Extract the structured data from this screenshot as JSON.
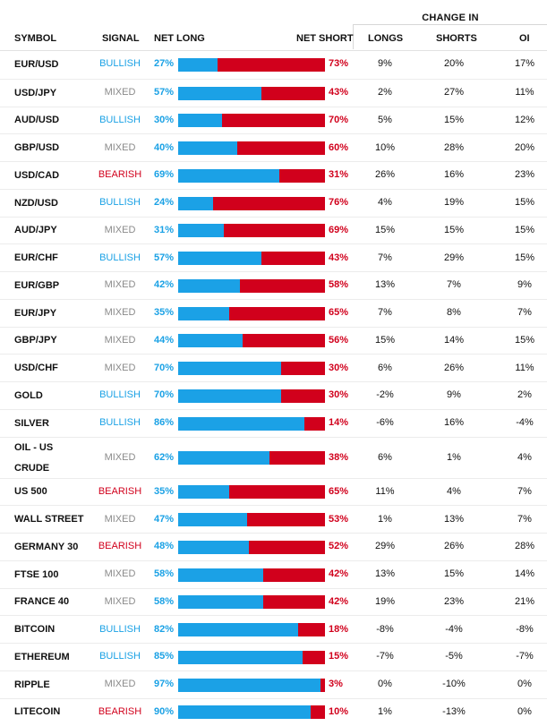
{
  "header": {
    "change_in": "CHANGE IN",
    "symbol": "SYMBOL",
    "signal": "SIGNAL",
    "net_long": "NET LONG",
    "net_short": "NET SHORT",
    "longs": "LONGS",
    "shorts": "SHORTS",
    "oi": "OI"
  },
  "colors": {
    "bullish": "#1aa1e5",
    "mixed": "#8a8a8a",
    "bearish": "#d1001c",
    "long_bar": "#1ba1e6",
    "short_bar": "#d1001c"
  },
  "rows": [
    {
      "symbol": "EUR/USD",
      "signal": "BULLISH",
      "net_long": 27,
      "net_short": 73,
      "longs": "9%",
      "shorts": "20%",
      "oi": "17%"
    },
    {
      "symbol": "USD/JPY",
      "signal": "MIXED",
      "net_long": 57,
      "net_short": 43,
      "longs": "2%",
      "shorts": "27%",
      "oi": "11%"
    },
    {
      "symbol": "AUD/USD",
      "signal": "BULLISH",
      "net_long": 30,
      "net_short": 70,
      "longs": "5%",
      "shorts": "15%",
      "oi": "12%"
    },
    {
      "symbol": "GBP/USD",
      "signal": "MIXED",
      "net_long": 40,
      "net_short": 60,
      "longs": "10%",
      "shorts": "28%",
      "oi": "20%"
    },
    {
      "symbol": "USD/CAD",
      "signal": "BEARISH",
      "net_long": 69,
      "net_short": 31,
      "longs": "26%",
      "shorts": "16%",
      "oi": "23%"
    },
    {
      "symbol": "NZD/USD",
      "signal": "BULLISH",
      "net_long": 24,
      "net_short": 76,
      "longs": "4%",
      "shorts": "19%",
      "oi": "15%"
    },
    {
      "symbol": "AUD/JPY",
      "signal": "MIXED",
      "net_long": 31,
      "net_short": 69,
      "longs": "15%",
      "shorts": "15%",
      "oi": "15%"
    },
    {
      "symbol": "EUR/CHF",
      "signal": "BULLISH",
      "net_long": 57,
      "net_short": 43,
      "longs": "7%",
      "shorts": "29%",
      "oi": "15%"
    },
    {
      "symbol": "EUR/GBP",
      "signal": "MIXED",
      "net_long": 42,
      "net_short": 58,
      "longs": "13%",
      "shorts": "7%",
      "oi": "9%"
    },
    {
      "symbol": "EUR/JPY",
      "signal": "MIXED",
      "net_long": 35,
      "net_short": 65,
      "longs": "7%",
      "shorts": "8%",
      "oi": "7%"
    },
    {
      "symbol": "GBP/JPY",
      "signal": "MIXED",
      "net_long": 44,
      "net_short": 56,
      "longs": "15%",
      "shorts": "14%",
      "oi": "15%"
    },
    {
      "symbol": "USD/CHF",
      "signal": "MIXED",
      "net_long": 70,
      "net_short": 30,
      "longs": "6%",
      "shorts": "26%",
      "oi": "11%"
    },
    {
      "symbol": "GOLD",
      "signal": "BULLISH",
      "net_long": 70,
      "net_short": 30,
      "longs": "-2%",
      "shorts": "9%",
      "oi": "2%"
    },
    {
      "symbol": "SILVER",
      "signal": "BULLISH",
      "net_long": 86,
      "net_short": 14,
      "longs": "-6%",
      "shorts": "16%",
      "oi": "-4%"
    },
    {
      "symbol": "OIL - US CRUDE",
      "signal": "MIXED",
      "net_long": 62,
      "net_short": 38,
      "longs": "6%",
      "shorts": "1%",
      "oi": "4%"
    },
    {
      "symbol": "US 500",
      "signal": "BEARISH",
      "net_long": 35,
      "net_short": 65,
      "longs": "11%",
      "shorts": "4%",
      "oi": "7%"
    },
    {
      "symbol": "WALL STREET",
      "signal": "MIXED",
      "net_long": 47,
      "net_short": 53,
      "longs": "1%",
      "shorts": "13%",
      "oi": "7%"
    },
    {
      "symbol": "GERMANY 30",
      "signal": "BEARISH",
      "net_long": 48,
      "net_short": 52,
      "longs": "29%",
      "shorts": "26%",
      "oi": "28%"
    },
    {
      "symbol": "FTSE 100",
      "signal": "MIXED",
      "net_long": 58,
      "net_short": 42,
      "longs": "13%",
      "shorts": "15%",
      "oi": "14%"
    },
    {
      "symbol": "FRANCE 40",
      "signal": "MIXED",
      "net_long": 58,
      "net_short": 42,
      "longs": "19%",
      "shorts": "23%",
      "oi": "21%"
    },
    {
      "symbol": "BITCOIN",
      "signal": "BULLISH",
      "net_long": 82,
      "net_short": 18,
      "longs": "-8%",
      "shorts": "-4%",
      "oi": "-8%"
    },
    {
      "symbol": "ETHEREUM",
      "signal": "BULLISH",
      "net_long": 85,
      "net_short": 15,
      "longs": "-7%",
      "shorts": "-5%",
      "oi": "-7%"
    },
    {
      "symbol": "RIPPLE",
      "signal": "MIXED",
      "net_long": 97,
      "net_short": 3,
      "longs": "0%",
      "shorts": "-10%",
      "oi": "0%"
    },
    {
      "symbol": "LITECOIN",
      "signal": "BEARISH",
      "net_long": 90,
      "net_short": 10,
      "longs": "1%",
      "shorts": "-13%",
      "oi": "0%"
    }
  ]
}
